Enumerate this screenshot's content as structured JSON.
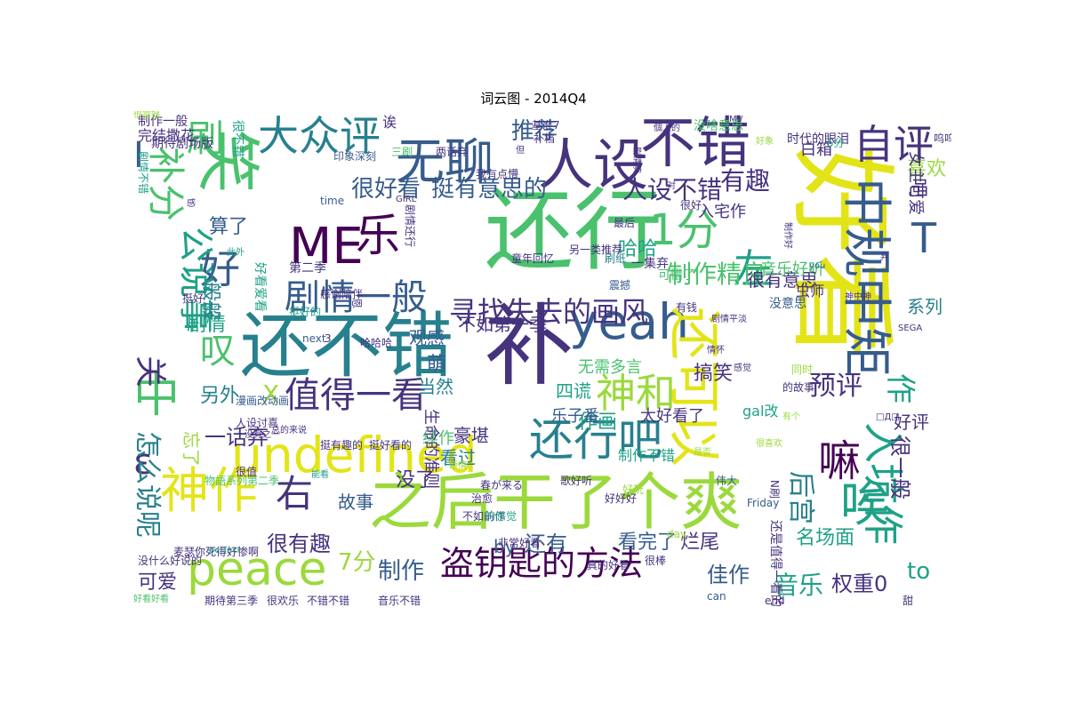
{
  "title": "词云图 - 2014Q4",
  "palette": {
    "yellow": "#e3e418",
    "lime": "#9bd93c",
    "green": "#4ac16d",
    "teal": "#1fa187",
    "cyan": "#27808e",
    "blue": "#365c8d",
    "indigo": "#46337e",
    "purple": "#440154"
  },
  "words": [
    {
      "text": "好看",
      "color": "yellow"
    },
    {
      "text": "补",
      "color": "indigo"
    },
    {
      "text": "还行",
      "color": "green"
    },
    {
      "text": "还不错",
      "color": "cyan"
    },
    {
      "text": "之后干了个爽",
      "color": "lime"
    },
    {
      "text": "笑",
      "color": "green"
    },
    {
      "text": "不错",
      "color": "indigo"
    },
    {
      "text": "人设",
      "color": "indigo"
    },
    {
      "text": "无聊",
      "color": "blue"
    },
    {
      "text": "yeah",
      "color": "blue"
    },
    {
      "text": "还可以",
      "color": "yellow"
    },
    {
      "text": "中规中矩",
      "color": "blue"
    },
    {
      "text": "undefined",
      "color": "yellow"
    },
    {
      "text": "peace",
      "color": "lime"
    },
    {
      "text": "神作",
      "color": "yellow"
    },
    {
      "text": "中",
      "color": "green"
    },
    {
      "text": "盗钥匙的方法",
      "color": "purple"
    },
    {
      "text": "唉",
      "color": "teal"
    },
    {
      "text": "入坑作",
      "color": "teal"
    },
    {
      "text": "还行吧",
      "color": "cyan"
    },
    {
      "text": "嘛",
      "color": "purple"
    },
    {
      "text": "ME",
      "color": "purple"
    },
    {
      "text": "1分",
      "color": "green"
    },
    {
      "text": "乐",
      "color": "purple"
    },
    {
      "text": "神和",
      "color": "lime"
    },
    {
      "text": "剧情一般",
      "color": "blue"
    },
    {
      "text": "值得一看",
      "color": "indigo"
    },
    {
      "text": "大众评",
      "color": "cyan"
    },
    {
      "text": "自评",
      "color": "indigo"
    },
    {
      "text": "右",
      "color": "indigo"
    },
    {
      "text": "补分",
      "color": "green"
    },
    {
      "text": "刷",
      "color": "green"
    },
    {
      "text": "好",
      "color": "blue"
    },
    {
      "text": "左",
      "color": "teal"
    },
    {
      "text": "公说事",
      "color": "teal"
    },
    {
      "text": "ε",
      "color": "indigo"
    },
    {
      "text": "寻找失去的画风",
      "color": "indigo"
    },
    {
      "text": "叹",
      "color": "green"
    },
    {
      "text": "关",
      "color": "indigo"
    },
    {
      "text": "T",
      "color": "blue"
    },
    {
      "text": "I",
      "color": "blue"
    },
    {
      "text": "怎么说呢",
      "color": "cyan"
    },
    {
      "text": "推荐",
      "color": "blue"
    },
    {
      "text": "很好看",
      "color": "blue"
    },
    {
      "text": "挺有意思的",
      "color": "blue"
    },
    {
      "text": "人设不错",
      "color": "indigo"
    },
    {
      "text": "有趣",
      "color": "indigo"
    },
    {
      "text": "制作精良",
      "color": "green"
    },
    {
      "text": "预评",
      "color": "indigo"
    },
    {
      "text": "后宫",
      "color": "cyan"
    },
    {
      "text": "作",
      "color": "teal"
    },
    {
      "text": "很一般",
      "color": "indigo"
    },
    {
      "text": "算了",
      "color": "blue"
    },
    {
      "text": "一般般",
      "color": "cyan"
    },
    {
      "text": "剧情",
      "color": "teal"
    },
    {
      "text": "另外",
      "color": "cyan"
    },
    {
      "text": "X",
      "color": "lime"
    },
    {
      "text": "一话弃",
      "color": "indigo"
    },
    {
      "text": "忘了",
      "color": "lime"
    },
    {
      "text": "很有趣",
      "color": "indigo"
    },
    {
      "text": "可爱",
      "color": "indigo"
    },
    {
      "text": "7分",
      "color": "lime"
    },
    {
      "text": "制作",
      "color": "blue"
    },
    {
      "text": "音乐",
      "color": "teal"
    },
    {
      "text": "权重0",
      "color": "indigo"
    },
    {
      "text": "to",
      "color": "teal"
    },
    {
      "text": "名场面",
      "color": "teal"
    },
    {
      "text": "佳作",
      "color": "blue"
    },
    {
      "text": "烂尾",
      "color": "indigo"
    },
    {
      "text": "看完了",
      "color": "blue"
    },
    {
      "text": "还有",
      "color": "blue"
    },
    {
      "text": "by",
      "color": "blue"
    },
    {
      "text": "故事",
      "color": "blue"
    },
    {
      "text": "没了",
      "color": "indigo"
    },
    {
      "text": "看过",
      "color": "cyan"
    },
    {
      "text": "豪堪",
      "color": "indigo"
    },
    {
      "text": "作画",
      "color": "teal"
    },
    {
      "text": "四谎",
      "color": "teal"
    },
    {
      "text": "萌",
      "color": "blue"
    },
    {
      "text": "当然",
      "color": "cyan"
    },
    {
      "text": "观感",
      "color": "blue"
    },
    {
      "text": "哈哈",
      "color": "teal"
    },
    {
      "text": "搞笑",
      "color": "indigo"
    },
    {
      "text": "系列",
      "color": "cyan"
    },
    {
      "text": "很有意思",
      "color": "indigo"
    },
    {
      "text": "喜欢",
      "color": "lime"
    },
    {
      "text": "吧",
      "color": "indigo"
    },
    {
      "text": "好评",
      "color": "indigo"
    },
    {
      "text": "白箱",
      "color": "indigo"
    },
    {
      "text": "不如第一季",
      "color": "indigo"
    },
    {
      "text": "无需多言",
      "color": "green"
    },
    {
      "text": "太好看了",
      "color": "indigo"
    },
    {
      "text": "乐子番",
      "color": "blue"
    },
    {
      "text": "续作",
      "color": "green"
    },
    {
      "text": "生命的准则",
      "color": "indigo"
    },
    {
      "text": "入宅作",
      "color": "indigo"
    },
    {
      "text": "音乐好听",
      "color": "green"
    },
    {
      "text": "女主可爱",
      "color": "indigo"
    },
    {
      "text": "诶",
      "color": "indigo"
    },
    {
      "text": "制作一般",
      "color": "indigo"
    },
    {
      "text": "完结撒花",
      "color": "indigo"
    },
    {
      "text": "很不错",
      "color": "teal"
    },
    {
      "text": "期待剧场版",
      "color": "indigo"
    },
    {
      "text": "剧情不错",
      "color": "teal"
    },
    {
      "text": "印象深刻",
      "color": "blue"
    },
    {
      "text": "三刷",
      "color": "green"
    },
    {
      "text": "两话弃",
      "color": "indigo"
    },
    {
      "text": "基准7",
      "color": "indigo"
    },
    {
      "text": "没啥意思",
      "color": "green"
    },
    {
      "text": "时代的眼泪",
      "color": "indigo"
    },
    {
      "text": "呜呜呜",
      "color": "indigo"
    },
    {
      "text": "5分",
      "color": "teal"
    },
    {
      "text": "最后",
      "color": "indigo"
    },
    {
      "text": "一集弃",
      "color": "indigo"
    },
    {
      "text": "震撼",
      "color": "blue"
    },
    {
      "text": "可惜了",
      "color": "green"
    },
    {
      "text": "另一类推荐",
      "color": "indigo"
    },
    {
      "text": "童年回忆",
      "color": "indigo"
    },
    {
      "text": "刷纸",
      "color": "cyan"
    },
    {
      "text": "虫师",
      "color": "indigo"
    },
    {
      "text": "没意思",
      "color": "blue"
    },
    {
      "text": "有钱",
      "color": "indigo"
    },
    {
      "text": "第二季",
      "color": "indigo"
    },
    {
      "text": "感谢陪伴",
      "color": "indigo"
    },
    {
      "text": "挺好的",
      "color": "teal"
    },
    {
      "text": "挺好",
      "color": "indigo"
    },
    {
      "text": "好看爱看",
      "color": "teal"
    },
    {
      "text": "next",
      "color": "blue"
    },
    {
      "text": "恩",
      "color": "indigo"
    },
    {
      "text": "哈哈哈",
      "color": "indigo"
    },
    {
      "text": "漫画改动画",
      "color": "blue"
    },
    {
      "text": "人设讨喜",
      "color": "indigo"
    },
    {
      "text": "总的来说",
      "color": "indigo"
    },
    {
      "text": "没有之一",
      "color": "indigo"
    },
    {
      "text": "物語系列第二季",
      "color": "green"
    },
    {
      "text": "挺有趣的",
      "color": "indigo"
    },
    {
      "text": "挺好看的",
      "color": "indigo"
    },
    {
      "text": "春が来る",
      "color": "indigo"
    },
    {
      "text": "歌好听",
      "color": "indigo"
    },
    {
      "text": "好好好",
      "color": "indigo"
    },
    {
      "text": "好玩",
      "color": "lime"
    },
    {
      "text": "治愈",
      "color": "indigo"
    },
    {
      "text": "不如前作",
      "color": "indigo"
    },
    {
      "text": "非常好看",
      "color": "indigo"
    },
    {
      "text": "真的好看",
      "color": "indigo"
    },
    {
      "text": "很棒",
      "color": "indigo"
    },
    {
      "text": "day",
      "color": "lime"
    },
    {
      "text": "Friday",
      "color": "blue"
    },
    {
      "text": "伟大",
      "color": "blue"
    },
    {
      "text": "的感觉",
      "color": "teal"
    },
    {
      "text": "麦瑟你死得好惨啊",
      "color": "indigo"
    },
    {
      "text": "perfect",
      "color": "teal"
    },
    {
      "text": "没什么好说的",
      "color": "indigo"
    },
    {
      "text": "很欢乐",
      "color": "indigo"
    },
    {
      "text": "期待第三季",
      "color": "indigo"
    },
    {
      "text": "好看好看",
      "color": "green"
    },
    {
      "text": "不错不错",
      "color": "indigo"
    },
    {
      "text": "音乐不错",
      "color": "indigo"
    },
    {
      "text": "can",
      "color": "blue"
    },
    {
      "text": "end",
      "color": "indigo"
    },
    {
      "text": "甜",
      "color": "indigo"
    },
    {
      "text": "gal改",
      "color": "teal"
    },
    {
      "text": "制作不错",
      "color": "teal"
    },
    {
      "text": "还是值得一看的",
      "color": "indigo"
    },
    {
      "text": "N刷",
      "color": "indigo"
    },
    {
      "text": "的故事",
      "color": "indigo"
    },
    {
      "text": "感觉",
      "color": "indigo"
    },
    {
      "text": "同时",
      "color": "lime"
    },
    {
      "text": "情怀",
      "color": "indigo"
    },
    {
      "text": "□Д□",
      "color": "indigo"
    },
    {
      "text": "神中神",
      "color": "indigo"
    },
    {
      "text": "弃",
      "color": "indigo"
    },
    {
      "text": "剧情平淡",
      "color": "indigo"
    },
    {
      "text": "you",
      "color": "blue"
    },
    {
      "text": "剧情还行",
      "color": "indigo"
    },
    {
      "text": "此外",
      "color": "teal"
    },
    {
      "text": "感",
      "color": "indigo"
    },
    {
      "text": "time",
      "color": "blue"
    },
    {
      "text": "GIRL",
      "color": "indigo"
    },
    {
      "text": "我有点懵",
      "color": "indigo"
    },
    {
      "text": "但",
      "color": "indigo"
    },
    {
      "text": "对",
      "color": "indigo"
    },
    {
      "text": "很好",
      "color": "indigo"
    },
    {
      "text": "y",
      "color": "indigo"
    },
    {
      "text": "MV",
      "color": "indigo"
    },
    {
      "text": "SEGA",
      "color": "indigo"
    },
    {
      "text": "好象",
      "color": "lime"
    },
    {
      "text": "补档",
      "color": "indigo"
    },
    {
      "text": "剧情演",
      "color": "indigo"
    },
    {
      "text": "個人的",
      "color": "indigo"
    },
    {
      "text": "能看",
      "color": "teal"
    },
    {
      "text": "3",
      "color": "indigo"
    },
    {
      "text": "娇情",
      "color": "lime"
    },
    {
      "text": "制作好",
      "color": "indigo"
    },
    {
      "text": "很值",
      "color": "indigo"
    },
    {
      "text": "很喜欢",
      "color": "lime"
    },
    {
      "text": "有个",
      "color": "lime"
    },
    {
      "text": "是否",
      "color": "lime"
    },
    {
      "text": "很震撼",
      "color": "lime"
    }
  ]
}
